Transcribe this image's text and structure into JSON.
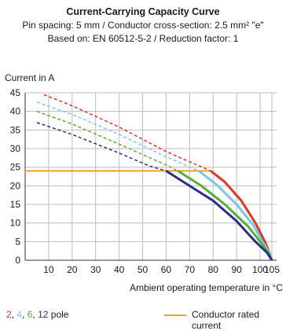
{
  "chart_data": {
    "type": "line",
    "title": "Current-Carrying Capacity Curve",
    "subtitle_lines": [
      "Pin spacing: 5 mm / Conductor cross-section: 2.5 mm² \"e\"",
      "Based on: EN 60512-5-2 / Reduction factor: 1"
    ],
    "xlabel": "Ambient operating temperature in °C",
    "ylabel": "Current in A",
    "xlim": [
      0,
      107
    ],
    "ylim": [
      0,
      45
    ],
    "x_ticks": [
      10,
      20,
      30,
      40,
      50,
      60,
      70,
      80,
      90,
      100,
      105
    ],
    "y_ticks": [
      0,
      5,
      10,
      15,
      20,
      25,
      30,
      35,
      40,
      45
    ],
    "grid": true,
    "series": [
      {
        "name": "2",
        "color": "#e63323",
        "dashed": [
          [
            8,
            44.5
          ],
          [
            20,
            41.5
          ],
          [
            40,
            35.8
          ],
          [
            60,
            29.2
          ],
          [
            79,
            24
          ]
        ],
        "solid": [
          [
            79,
            24
          ],
          [
            85,
            21
          ],
          [
            92,
            16
          ],
          [
            98,
            10
          ],
          [
            102,
            5
          ],
          [
            104,
            2
          ],
          [
            105,
            0
          ]
        ]
      },
      {
        "name": "4",
        "color": "#7ac6e8",
        "dashed": [
          [
            5,
            42.5
          ],
          [
            20,
            39.2
          ],
          [
            40,
            33.8
          ],
          [
            60,
            27.8
          ],
          [
            74,
            24
          ]
        ],
        "solid": [
          [
            74,
            24
          ],
          [
            82,
            20
          ],
          [
            90,
            15
          ],
          [
            97,
            9.5
          ],
          [
            101,
            5
          ],
          [
            104,
            2
          ],
          [
            105,
            0
          ]
        ]
      },
      {
        "name": "6",
        "color": "#55b035",
        "dashed": [
          [
            5,
            40
          ],
          [
            20,
            36.6
          ],
          [
            40,
            31.2
          ],
          [
            60,
            25.6
          ],
          [
            65,
            24
          ]
        ],
        "solid": [
          [
            65,
            24
          ],
          [
            75,
            20
          ],
          [
            85,
            15
          ],
          [
            95,
            9
          ],
          [
            100,
            5
          ],
          [
            103.5,
            2
          ],
          [
            105,
            0
          ]
        ]
      },
      {
        "name": "12",
        "color": "#2c2c8c",
        "dashed": [
          [
            5,
            37
          ],
          [
            20,
            33.8
          ],
          [
            40,
            28.8
          ],
          [
            53,
            25.3
          ],
          [
            60,
            24
          ]
        ],
        "solid": [
          [
            60,
            24
          ],
          [
            70,
            20
          ],
          [
            80,
            16
          ],
          [
            90,
            10.5
          ],
          [
            98,
            5
          ],
          [
            103,
            2
          ],
          [
            105,
            0
          ]
        ]
      }
    ],
    "rated_current": {
      "name": "Conductor rated current",
      "color": "#f0a020",
      "value": 24,
      "x_range": [
        0,
        79
      ]
    },
    "legend_pole_suffix": " pole"
  }
}
